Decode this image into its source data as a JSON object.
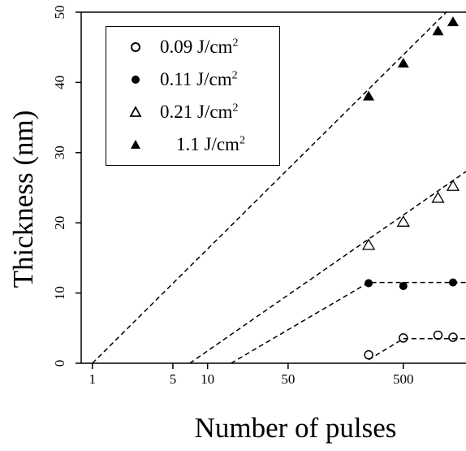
{
  "chart_data": {
    "type": "scatter",
    "title": "",
    "xlabel": "Number of pulses",
    "ylabel": "Thickness (nm)",
    "x_scale": "log",
    "xlim": [
      0.8,
      1750
    ],
    "ylim": [
      0,
      50
    ],
    "x_ticks": [
      1,
      5,
      10,
      50,
      500
    ],
    "x_tick_labels": [
      "1",
      "5",
      "10",
      "50",
      "500"
    ],
    "y_ticks": [
      0,
      10,
      20,
      30,
      40,
      50
    ],
    "y_tick_labels": [
      "0",
      "10",
      "20",
      "30",
      "40",
      "50"
    ],
    "grid": false,
    "legend_position": "top-left",
    "series": [
      {
        "name": "0.09 J/cm",
        "name_sup": "2",
        "marker": "open-circle",
        "x": [
          250,
          500,
          1000,
          2000
        ],
        "y": [
          1.2,
          3.6,
          4.0,
          3.7
        ],
        "fit": {
          "type": "piecewise",
          "x": [
            250,
            500,
            2000
          ],
          "y": [
            0.5,
            3.5,
            3.5
          ]
        }
      },
      {
        "name": "0.11 J/cm",
        "name_sup": "2",
        "marker": "filled-circle",
        "x": [
          250,
          500,
          2000
        ],
        "y": [
          11.4,
          11.0,
          11.5
        ],
        "fit": {
          "type": "piecewise",
          "x": [
            16,
            250,
            2000
          ],
          "y": [
            0,
            11.5,
            11.5
          ]
        }
      },
      {
        "name": "0.21 J/cm",
        "name_sup": "2",
        "marker": "open-triangle",
        "x": [
          250,
          500,
          1000,
          2000
        ],
        "y": [
          16.8,
          20.1,
          23.5,
          25.2
        ],
        "fit": {
          "type": "line",
          "x": [
            7,
            1750
          ],
          "y": [
            0,
            27.3
          ]
        }
      },
      {
        "name": "1.1 J/cm",
        "name_sup": "2",
        "marker": "filled-triangle",
        "x": [
          250,
          500,
          1000,
          2000
        ],
        "y": [
          38.0,
          42.7,
          47.3,
          48.6
        ],
        "fit": {
          "type": "line",
          "x": [
            1,
            1180
          ],
          "y": [
            0,
            50
          ]
        }
      }
    ]
  }
}
